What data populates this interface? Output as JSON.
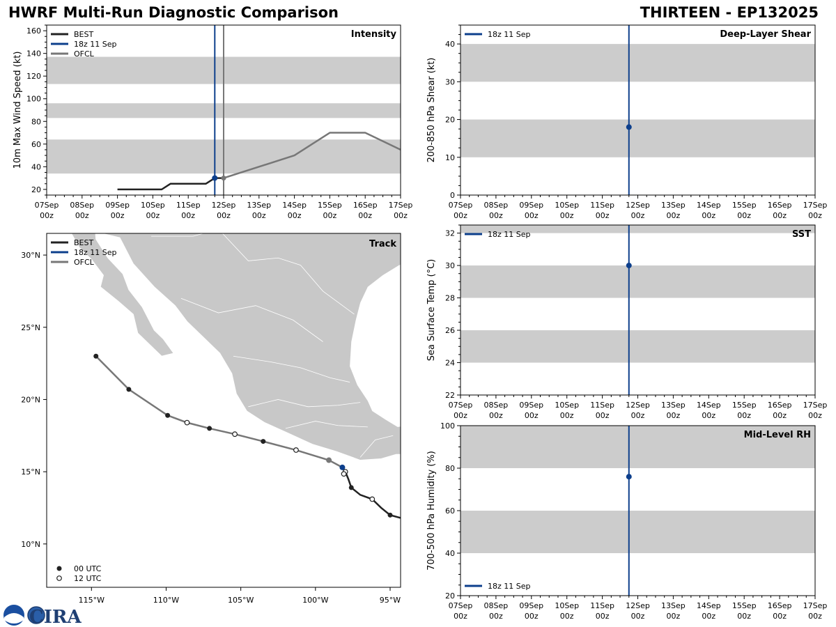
{
  "header": {
    "title": "HWRF Multi-Run Diagnostic Comparison",
    "storm": "THIRTEEN - EP132025"
  },
  "colors": {
    "best": "#222222",
    "run": "#0d3f8c",
    "ofcl": "#777777",
    "band": "#cccccc",
    "land": "#c8c8c8"
  },
  "logo": {
    "text": "CIRA"
  },
  "chart_data": [
    {
      "id": "intensity",
      "type": "line",
      "title": "Intensity",
      "ylabel": "10m Max Wind Speed (kt)",
      "xlim": [
        0,
        10
      ],
      "ylim": [
        15,
        165
      ],
      "yticks": [
        20,
        40,
        60,
        80,
        100,
        120,
        140,
        160
      ],
      "bands": [
        [
          34,
          64
        ],
        [
          83,
          96
        ],
        [
          113,
          137
        ]
      ],
      "x_tick_labels": [
        [
          "07Sep",
          "00z"
        ],
        [
          "08Sep",
          "00z"
        ],
        [
          "09Sep",
          "00z"
        ],
        [
          "10Sep",
          "00z"
        ],
        [
          "11Sep",
          "00z"
        ],
        [
          "12Sep",
          "00z"
        ],
        [
          "13Sep",
          "00z"
        ],
        [
          "14Sep",
          "00z"
        ],
        [
          "15Sep",
          "00z"
        ],
        [
          "16Sep",
          "00z"
        ],
        [
          "17Sep",
          "00z"
        ]
      ],
      "legend": [
        "BEST",
        "18z 11 Sep",
        "OFCL"
      ],
      "vlines": [
        {
          "series": "run",
          "x": 4.75
        },
        {
          "series": "ofcl",
          "x": 5.0
        }
      ],
      "series": [
        {
          "name": "BEST",
          "key": "best",
          "x": [
            2.0,
            3.25,
            3.5,
            4.5,
            4.75,
            5.0
          ],
          "y": [
            20,
            20,
            25,
            25,
            30,
            30
          ]
        },
        {
          "name": "OFCL",
          "key": "ofcl",
          "x": [
            5.0,
            5.5,
            7.0,
            8.0,
            9.0,
            10.0
          ],
          "y": [
            30,
            35,
            50,
            70,
            70,
            55
          ]
        },
        {
          "name": "18z 11 Sep",
          "key": "run",
          "x": [
            4.75
          ],
          "y": [
            30
          ]
        }
      ],
      "markers": [
        {
          "series": "ofcl",
          "x": 5.0,
          "y": 30
        }
      ]
    },
    {
      "id": "shear",
      "type": "line",
      "title": "Deep-Layer Shear",
      "ylabel": "200-850 hPa Shear (kt)",
      "xlim": [
        0,
        10
      ],
      "ylim": [
        0,
        45
      ],
      "yticks": [
        0,
        10,
        20,
        30,
        40
      ],
      "bands": [
        [
          10,
          20
        ],
        [
          30,
          40
        ]
      ],
      "x_tick_labels": [
        [
          "07Sep",
          "00z"
        ],
        [
          "08Sep",
          "00z"
        ],
        [
          "09Sep",
          "00z"
        ],
        [
          "10Sep",
          "00z"
        ],
        [
          "11Sep",
          "00z"
        ],
        [
          "12Sep",
          "00z"
        ],
        [
          "13Sep",
          "00z"
        ],
        [
          "14Sep",
          "00z"
        ],
        [
          "15Sep",
          "00z"
        ],
        [
          "16Sep",
          "00z"
        ],
        [
          "17Sep",
          "00z"
        ]
      ],
      "legend": [
        "18z 11 Sep"
      ],
      "vlines": [
        {
          "series": "run",
          "x": 4.75
        }
      ],
      "series": [
        {
          "name": "18z 11 Sep",
          "key": "run",
          "x": [
            4.75
          ],
          "y": [
            18
          ]
        }
      ]
    },
    {
      "id": "sst",
      "type": "line",
      "title": "SST",
      "ylabel": "Sea Surface Temp (°C)",
      "xlim": [
        0,
        10
      ],
      "ylim": [
        22,
        32.5
      ],
      "yticks": [
        22,
        24,
        26,
        28,
        30,
        32
      ],
      "bands": [
        [
          24,
          26
        ],
        [
          28,
          30
        ],
        [
          32,
          34
        ]
      ],
      "x_tick_labels": [
        [
          "07Sep",
          "00z"
        ],
        [
          "08Sep",
          "00z"
        ],
        [
          "09Sep",
          "00z"
        ],
        [
          "10Sep",
          "00z"
        ],
        [
          "11Sep",
          "00z"
        ],
        [
          "12Sep",
          "00z"
        ],
        [
          "13Sep",
          "00z"
        ],
        [
          "14Sep",
          "00z"
        ],
        [
          "15Sep",
          "00z"
        ],
        [
          "16Sep",
          "00z"
        ],
        [
          "17Sep",
          "00z"
        ]
      ],
      "legend": [
        "18z 11 Sep"
      ],
      "vlines": [
        {
          "series": "run",
          "x": 4.75
        }
      ],
      "series": [
        {
          "name": "18z 11 Sep",
          "key": "run",
          "x": [
            4.75
          ],
          "y": [
            30
          ]
        }
      ]
    },
    {
      "id": "rh",
      "type": "line",
      "title": "Mid-Level RH",
      "ylabel": "700-500 hPa Humidity (%)",
      "xlim": [
        0,
        10
      ],
      "ylim": [
        20,
        100
      ],
      "yticks": [
        20,
        40,
        60,
        80,
        100
      ],
      "bands": [
        [
          40,
          60
        ],
        [
          80,
          100
        ]
      ],
      "x_tick_labels": [
        [
          "07Sep",
          "00z"
        ],
        [
          "08Sep",
          "00z"
        ],
        [
          "09Sep",
          "00z"
        ],
        [
          "10Sep",
          "00z"
        ],
        [
          "11Sep",
          "00z"
        ],
        [
          "12Sep",
          "00z"
        ],
        [
          "13Sep",
          "00z"
        ],
        [
          "14Sep",
          "00z"
        ],
        [
          "15Sep",
          "00z"
        ],
        [
          "16Sep",
          "00z"
        ],
        [
          "17Sep",
          "00z"
        ]
      ],
      "legend": [
        "18z 11 Sep"
      ],
      "legend_position": "bottom-left",
      "vlines": [
        {
          "series": "run",
          "x": 4.75
        }
      ],
      "series": [
        {
          "name": "18z 11 Sep",
          "key": "run",
          "x": [
            4.75
          ],
          "y": [
            76
          ]
        }
      ]
    },
    {
      "id": "track",
      "type": "scatter",
      "title": "Track",
      "xlim": [
        -118.0,
        -94.3
      ],
      "ylim": [
        7.0,
        31.5
      ],
      "lon_ticks": [
        -115,
        -110,
        -105,
        -100,
        -95
      ],
      "lon_tick_labels": [
        "115°W",
        "110°W",
        "105°W",
        "100°W",
        "95°W"
      ],
      "lat_ticks": [
        10,
        15,
        20,
        25,
        30
      ],
      "lat_tick_labels": [
        "10°N",
        "15°N",
        "20°N",
        "25°N",
        "30°N"
      ],
      "legend": [
        "BEST",
        "18z 11 Sep",
        "OFCL"
      ],
      "marker_legend": [
        "00 UTC",
        "12 UTC"
      ],
      "best_track": {
        "lon": [
          -94.3,
          -95.0,
          -95.6,
          -96.2,
          -97.0,
          -97.6,
          -97.8,
          -98.0,
          -98.2
        ],
        "lat": [
          11.8,
          12.0,
          12.5,
          13.1,
          13.4,
          13.9,
          14.5,
          15.0,
          15.3
        ],
        "marker_type": [
          "none",
          "00",
          "none",
          "12",
          "none",
          "00",
          "none",
          "12",
          "none"
        ]
      },
      "run_position": {
        "lon": -98.2,
        "lat": 15.3
      },
      "ofcl_track": {
        "lon": [
          -98.2,
          -99.1,
          -101.3,
          -103.5,
          -105.4,
          -107.1,
          -108.6,
          -109.9,
          -112.5,
          -114.7
        ],
        "lat": [
          15.3,
          15.8,
          16.5,
          17.1,
          17.6,
          18.0,
          18.4,
          18.9,
          20.7,
          23.0
        ],
        "marker_type": [
          "none",
          "big",
          "12",
          "00",
          "12",
          "00",
          "12",
          "00",
          "00",
          "00"
        ]
      }
    }
  ]
}
